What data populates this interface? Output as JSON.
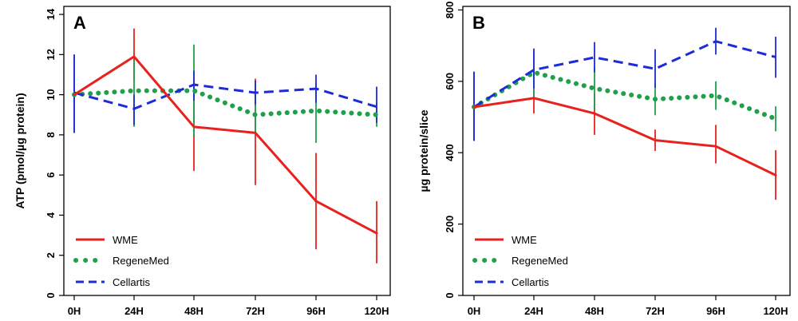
{
  "chart_data": [
    {
      "type": "line",
      "panel_label": "A",
      "title": "",
      "xlabel": "",
      "ylabel": "ATP (pmol/µg protein)",
      "categories": [
        "0H",
        "24H",
        "48H",
        "72H",
        "96H",
        "120H"
      ],
      "yticks": [
        "0",
        "2",
        "4",
        "6",
        "8",
        "10",
        "12",
        "14"
      ],
      "ylim": [
        0,
        14.4
      ],
      "grid": false,
      "legend_position": "bottom-left",
      "series": [
        {
          "name": "WME",
          "color": "#e8211e",
          "style": "solid",
          "values": [
            10.0,
            11.9,
            8.4,
            8.1,
            4.7,
            3.1
          ],
          "error_low": [
            8.1,
            10.7,
            6.2,
            5.5,
            2.3,
            1.6
          ],
          "error_high": [
            12.0,
            13.3,
            10.2,
            10.8,
            7.1,
            4.7
          ]
        },
        {
          "name": "RegeneMed",
          "color": "#1fa14a",
          "style": "dotted",
          "values": [
            10.0,
            10.2,
            10.2,
            9.0,
            9.2,
            9.0
          ],
          "error_low": [
            8.1,
            8.4,
            7.9,
            8.0,
            7.6,
            8.4
          ],
          "error_high": [
            12.0,
            11.7,
            12.5,
            10.0,
            10.6,
            9.6
          ]
        },
        {
          "name": "Cellartis",
          "color": "#1d2bd8",
          "style": "dashed",
          "values": [
            10.1,
            9.3,
            10.5,
            10.1,
            10.3,
            9.4
          ],
          "error_low": [
            8.1,
            8.5,
            9.7,
            9.5,
            9.6,
            8.6
          ],
          "error_high": [
            12.0,
            10.0,
            11.2,
            10.7,
            11.0,
            10.4
          ]
        }
      ]
    },
    {
      "type": "line",
      "panel_label": "B",
      "title": "",
      "xlabel": "",
      "ylabel": "µg protein/slice",
      "categories": [
        "0H",
        "24H",
        "48H",
        "72H",
        "96H",
        "120H"
      ],
      "yticks": [
        "0",
        "200",
        "400",
        "600",
        "800"
      ],
      "ylim": [
        0,
        810
      ],
      "grid": false,
      "legend_position": "bottom-left",
      "series": [
        {
          "name": "WME",
          "color": "#e8211e",
          "style": "solid",
          "values": [
            528,
            553,
            510,
            435,
            418,
            337
          ],
          "error_low": [
            433,
            510,
            450,
            405,
            370,
            268
          ],
          "error_high": [
            627,
            598,
            567,
            465,
            478,
            407
          ]
        },
        {
          "name": "RegeneMed",
          "color": "#1fa14a",
          "style": "dotted",
          "values": [
            528,
            625,
            580,
            550,
            560,
            495
          ],
          "error_low": [
            433,
            555,
            520,
            505,
            520,
            460
          ],
          "error_high": [
            627,
            685,
            640,
            595,
            600,
            530
          ]
        },
        {
          "name": "Cellartis",
          "color": "#1d2bd8",
          "style": "dashed",
          "values": [
            528,
            632,
            667,
            635,
            712,
            668
          ],
          "error_low": [
            433,
            580,
            625,
            582,
            675,
            610
          ],
          "error_high": [
            627,
            692,
            710,
            690,
            750,
            725
          ]
        }
      ]
    }
  ]
}
